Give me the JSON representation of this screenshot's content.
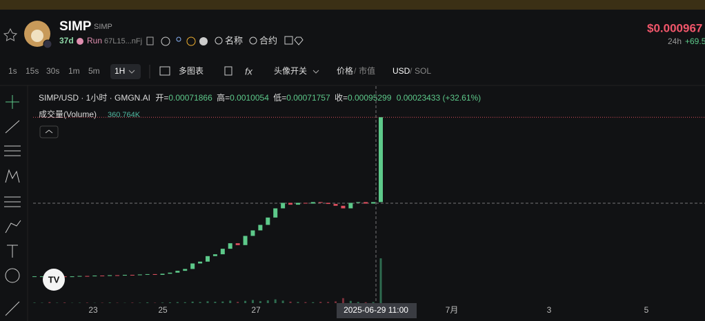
{
  "header": {
    "name": "SIMP",
    "ticker": "SIMP",
    "age": "37d",
    "status": "Run",
    "address": "67L15...nFj",
    "search_name": "名称",
    "search_contract": "合约",
    "price": "$0.000967",
    "period": "24h",
    "change": "+69.5"
  },
  "toolbar": {
    "intervals": [
      "1s",
      "15s",
      "30s",
      "1m",
      "5m"
    ],
    "active_interval": "1H",
    "multi_chart": "多图表",
    "avatar_toggle": "头像开关",
    "price": "价格",
    "sep1": "/",
    "market_cap": "市值",
    "usd": "USD",
    "sep2": "/",
    "sol": "SOL"
  },
  "chart_data": {
    "type": "candlestick",
    "legend": {
      "symbol": "SIMP/USD · 1小时 · GMGN.AI",
      "open_label": "开=",
      "open": "0.00071866",
      "high_label": "高=",
      "high": "0.0010054",
      "low_label": "低=",
      "low": "0.00071757",
      "close_label": "收=",
      "close": "0.00095299",
      "change": "0.00023433 (+32.61%)",
      "volume_title": "成交量(Volume)",
      "volume_value": "360.764K"
    },
    "closes": [
      0.00052,
      0.00052,
      0.000515,
      0.00052,
      0.000518,
      0.00052,
      0.000521,
      0.00052,
      0.000522,
      0.000521,
      0.000523,
      0.000522,
      0.000524,
      0.000523,
      0.000525,
      0.000526,
      0.000524,
      0.000527,
      0.00053,
      0.000535,
      0.00054,
      0.000555,
      0.00056,
      0.000575,
      0.00058,
      0.000595,
      0.00061,
      0.000605,
      0.00063,
      0.000645,
      0.00066,
      0.00068,
      0.000705,
      0.00072,
      0.000715,
      0.00072,
      0.000718,
      0.000722,
      0.00072,
      0.000717,
      0.000712,
      0.000705,
      0.00072,
      0.000722,
      0.000718,
      0.000722,
      0.00095299
    ],
    "volumes": [
      4000,
      3000,
      8000,
      3000,
      5000,
      2000,
      3000,
      4000,
      2000,
      3000,
      5000,
      3000,
      2000,
      4000,
      3000,
      6000,
      3000,
      4000,
      6000,
      8000,
      7000,
      12000,
      9000,
      15000,
      11000,
      13000,
      20000,
      10000,
      18000,
      25000,
      16000,
      22000,
      30000,
      20000,
      12000,
      9000,
      8000,
      7000,
      10000,
      9000,
      14000,
      40000,
      18000,
      9000,
      7000,
      8000,
      360764
    ],
    "x_labels": [
      "23",
      "25",
      "27",
      "2025-06-29   11:00",
      "7月",
      "3",
      "5"
    ]
  }
}
